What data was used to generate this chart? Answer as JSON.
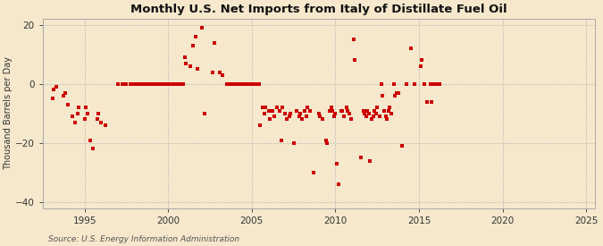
{
  "title": "Monthly U.S. Net Imports from Italy of Distillate Fuel Oil",
  "ylabel": "Thousand Barrels per Day",
  "source": "Source: U.S. Energy Information Administration",
  "xlim": [
    1992.5,
    2025.5
  ],
  "ylim": [
    -42,
    22
  ],
  "yticks": [
    -40,
    -20,
    0,
    20
  ],
  "xticks": [
    1995,
    2000,
    2005,
    2010,
    2015,
    2020,
    2025
  ],
  "bg_color": "#f5e8cc",
  "marker_color": "#cc0000",
  "grid_color": "#bbbbbb",
  "scatter_data": [
    [
      1993.08,
      -5
    ],
    [
      1993.17,
      -2
    ],
    [
      1993.33,
      -1
    ],
    [
      1993.75,
      -4
    ],
    [
      1993.83,
      -3
    ],
    [
      1994.0,
      -7
    ],
    [
      1994.25,
      -11
    ],
    [
      1994.42,
      -13
    ],
    [
      1994.58,
      -10
    ],
    [
      1994.67,
      -8
    ],
    [
      1995.0,
      -12
    ],
    [
      1995.08,
      -8
    ],
    [
      1995.17,
      -10
    ],
    [
      1995.33,
      -19
    ],
    [
      1995.5,
      -22
    ],
    [
      1995.75,
      -12
    ],
    [
      1995.83,
      -10
    ],
    [
      1996.0,
      -13
    ],
    [
      1996.25,
      -14
    ],
    [
      1997.0,
      0
    ],
    [
      1997.25,
      0
    ],
    [
      1997.5,
      0
    ],
    [
      1997.75,
      0
    ],
    [
      1997.83,
      0
    ],
    [
      1997.92,
      0
    ],
    [
      1998.0,
      0
    ],
    [
      1998.08,
      0
    ],
    [
      1998.17,
      0
    ],
    [
      1998.33,
      0
    ],
    [
      1998.5,
      0
    ],
    [
      1998.67,
      0
    ],
    [
      1998.75,
      0
    ],
    [
      1998.92,
      0
    ],
    [
      1999.0,
      0
    ],
    [
      1999.08,
      0
    ],
    [
      1999.17,
      0
    ],
    [
      1999.33,
      0
    ],
    [
      1999.5,
      0
    ],
    [
      1999.58,
      0
    ],
    [
      1999.67,
      0
    ],
    [
      1999.75,
      0
    ],
    [
      1999.83,
      0
    ],
    [
      1999.92,
      0
    ],
    [
      2000.0,
      0
    ],
    [
      2000.08,
      0
    ],
    [
      2000.17,
      0
    ],
    [
      2000.25,
      0
    ],
    [
      2000.33,
      0
    ],
    [
      2000.42,
      0
    ],
    [
      2000.5,
      0
    ],
    [
      2000.58,
      0
    ],
    [
      2000.67,
      0
    ],
    [
      2000.75,
      0
    ],
    [
      2000.83,
      0
    ],
    [
      2000.92,
      0
    ],
    [
      2001.0,
      9
    ],
    [
      2001.08,
      7
    ],
    [
      2001.33,
      6
    ],
    [
      2001.5,
      13
    ],
    [
      2001.67,
      16
    ],
    [
      2001.75,
      5
    ],
    [
      2002.0,
      19
    ],
    [
      2002.17,
      -10
    ],
    [
      2002.67,
      4
    ],
    [
      2002.75,
      14
    ],
    [
      2003.08,
      4
    ],
    [
      2003.25,
      3
    ],
    [
      2003.5,
      0
    ],
    [
      2003.58,
      0
    ],
    [
      2003.67,
      0
    ],
    [
      2003.75,
      0
    ],
    [
      2003.83,
      0
    ],
    [
      2003.92,
      0
    ],
    [
      2004.0,
      0
    ],
    [
      2004.08,
      0
    ],
    [
      2004.17,
      0
    ],
    [
      2004.25,
      0
    ],
    [
      2004.33,
      0
    ],
    [
      2004.42,
      0
    ],
    [
      2004.5,
      0
    ],
    [
      2004.58,
      0
    ],
    [
      2004.67,
      0
    ],
    [
      2004.75,
      0
    ],
    [
      2004.83,
      0
    ],
    [
      2004.92,
      0
    ],
    [
      2005.0,
      0
    ],
    [
      2005.08,
      0
    ],
    [
      2005.17,
      0
    ],
    [
      2005.25,
      0
    ],
    [
      2005.33,
      0
    ],
    [
      2005.42,
      0
    ],
    [
      2005.5,
      -14
    ],
    [
      2005.67,
      -8
    ],
    [
      2005.75,
      -10
    ],
    [
      2005.83,
      -8
    ],
    [
      2006.0,
      -9
    ],
    [
      2006.08,
      -12
    ],
    [
      2006.25,
      -9
    ],
    [
      2006.33,
      -11
    ],
    [
      2006.5,
      -8
    ],
    [
      2006.67,
      -9
    ],
    [
      2006.75,
      -19
    ],
    [
      2006.83,
      -8
    ],
    [
      2007.0,
      -10
    ],
    [
      2007.08,
      -12
    ],
    [
      2007.25,
      -11
    ],
    [
      2007.33,
      -10
    ],
    [
      2007.5,
      -20
    ],
    [
      2007.67,
      -9
    ],
    [
      2007.83,
      -11
    ],
    [
      2007.92,
      -10
    ],
    [
      2008.0,
      -12
    ],
    [
      2008.17,
      -9
    ],
    [
      2008.25,
      -11
    ],
    [
      2008.33,
      -8
    ],
    [
      2008.5,
      -9
    ],
    [
      2008.67,
      -30
    ],
    [
      2009.0,
      -10
    ],
    [
      2009.08,
      -11
    ],
    [
      2009.25,
      -12
    ],
    [
      2009.42,
      -19
    ],
    [
      2009.5,
      -20
    ],
    [
      2009.67,
      -9
    ],
    [
      2009.75,
      -8
    ],
    [
      2009.83,
      -9
    ],
    [
      2009.92,
      -11
    ],
    [
      2010.0,
      -10
    ],
    [
      2010.08,
      -27
    ],
    [
      2010.17,
      -34
    ],
    [
      2010.33,
      -9
    ],
    [
      2010.42,
      -9
    ],
    [
      2010.5,
      -11
    ],
    [
      2010.67,
      -8
    ],
    [
      2010.75,
      -9
    ],
    [
      2010.83,
      -10
    ],
    [
      2010.92,
      -12
    ],
    [
      2011.08,
      15
    ],
    [
      2011.17,
      8
    ],
    [
      2011.5,
      -25
    ],
    [
      2011.67,
      -9
    ],
    [
      2011.75,
      -10
    ],
    [
      2011.83,
      -11
    ],
    [
      2011.92,
      -9
    ],
    [
      2012.0,
      -10
    ],
    [
      2012.08,
      -26
    ],
    [
      2012.17,
      -12
    ],
    [
      2012.25,
      -11
    ],
    [
      2012.33,
      -9
    ],
    [
      2012.42,
      -10
    ],
    [
      2012.5,
      -8
    ],
    [
      2012.67,
      -11
    ],
    [
      2012.75,
      0
    ],
    [
      2012.83,
      -4
    ],
    [
      2012.92,
      -9
    ],
    [
      2013.0,
      -11
    ],
    [
      2013.08,
      -12
    ],
    [
      2013.17,
      -9
    ],
    [
      2013.25,
      -8
    ],
    [
      2013.33,
      -10
    ],
    [
      2013.5,
      0
    ],
    [
      2013.58,
      -4
    ],
    [
      2013.67,
      -3
    ],
    [
      2013.75,
      -3
    ],
    [
      2014.0,
      -21
    ],
    [
      2014.25,
      0
    ],
    [
      2014.5,
      12
    ],
    [
      2014.75,
      0
    ],
    [
      2015.08,
      6
    ],
    [
      2015.17,
      8
    ],
    [
      2015.33,
      0
    ],
    [
      2015.5,
      -6
    ],
    [
      2015.67,
      0
    ],
    [
      2015.75,
      -6
    ],
    [
      2015.83,
      0
    ],
    [
      2015.92,
      0
    ],
    [
      2016.0,
      0
    ],
    [
      2016.08,
      0
    ],
    [
      2016.17,
      0
    ],
    [
      2016.25,
      0
    ]
  ]
}
